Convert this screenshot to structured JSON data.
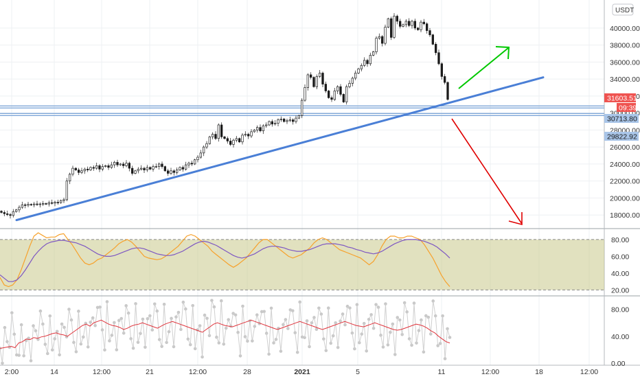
{
  "currency_label": "USDT",
  "chart_data": {
    "type": "candlestick",
    "price_axis": {
      "ticks": [
        "40000.00",
        "38000.00",
        "36000.00",
        "34000.00",
        "32000.00",
        "30000.00",
        "28000.00",
        "26000.00",
        "24000.00",
        "22000.00",
        "20000.00",
        "18000.00"
      ],
      "range": [
        16400,
        43300
      ]
    },
    "time_axis": {
      "ticks": [
        "2:00",
        "14",
        "12:00",
        "21",
        "12:00",
        "28",
        "2021",
        "5",
        "11",
        "12:00",
        "18",
        "12:00"
      ]
    },
    "price_tags": {
      "last_price": "31603.51",
      "countdown": "09:39",
      "level_upper": "30713.80",
      "level_lower": "29822.92"
    },
    "price_colors": {
      "up": "#26a69a",
      "down": "#ef5350",
      "wick": "#333333",
      "trend": "#4a7fd6"
    },
    "candles_close": [
      18300,
      18150,
      18050,
      17950,
      18400,
      18600,
      18900,
      19200,
      19150,
      19250,
      19200,
      19300,
      19250,
      19300,
      19350,
      19300,
      19450,
      19400,
      19500,
      19450,
      19700,
      19800,
      22000,
      22800,
      23500,
      23300,
      23000,
      23200,
      23400,
      23300,
      23600,
      23500,
      23800,
      23400,
      23700,
      23800,
      23600,
      23900,
      24200,
      23900,
      24000,
      23800,
      24100,
      23500,
      22900,
      23200,
      23400,
      23500,
      23300,
      23600,
      23400,
      23700,
      23700,
      24000,
      23700,
      23200,
      22900,
      23200,
      23000,
      23300,
      23600,
      23400,
      23900,
      24100,
      24000,
      24500,
      24800,
      25300,
      26000,
      26400,
      27200,
      27500,
      27000,
      28600,
      27200,
      27000,
      26700,
      26300,
      26800,
      27000,
      26600,
      27400,
      27500,
      27300,
      27800,
      28000,
      28300,
      27900,
      28500,
      28600,
      29000,
      28700,
      28800,
      29200,
      29300,
      29000,
      29100,
      29200,
      29000,
      29400,
      29700,
      31500,
      33000,
      34500,
      34200,
      33100,
      34300,
      34700,
      33400,
      32600,
      31800,
      31600,
      32600,
      33100,
      32200,
      31300,
      33100,
      33500,
      34100,
      34700,
      35200,
      35600,
      36200,
      35800,
      36800,
      37200,
      38800,
      39000,
      38200,
      40100,
      41100,
      38900,
      41400,
      40800,
      40200,
      40400,
      40800,
      40300,
      40800,
      40000,
      39800,
      40700,
      40500,
      39700,
      39200,
      38100,
      37100,
      35800,
      34300,
      33600,
      31600
    ],
    "trendline": {
      "from": [
        17400,
        0
      ],
      "to": [
        34200,
        1
      ]
    },
    "support_levels": [
      30713.8,
      29822.92
    ],
    "projections": [
      {
        "direction": "up",
        "color": "#00c800"
      },
      {
        "direction": "down",
        "color": "#e00000"
      }
    ],
    "oscillator_1": {
      "ticks": [
        "80.00",
        "60.00",
        "40.00",
        "20.00"
      ],
      "range": [
        13,
        93
      ],
      "band": [
        20,
        80
      ],
      "fast_color": "#f7a12b",
      "slow_color": "#7e57c2",
      "fast": [
        35,
        26,
        24,
        26,
        32,
        44,
        58,
        72,
        84,
        88,
        85,
        82,
        83,
        83,
        86,
        87,
        80,
        74,
        66,
        58,
        52,
        50,
        52,
        56,
        58,
        62,
        66,
        70,
        75,
        78,
        80,
        77,
        72,
        66,
        60,
        58,
        57,
        56,
        57,
        60,
        64,
        68,
        72,
        78,
        84,
        86,
        84,
        80,
        76,
        72,
        66,
        62,
        58,
        54,
        50,
        47,
        50,
        54,
        58,
        64,
        70,
        76,
        80,
        80,
        76,
        72,
        68,
        64,
        60,
        58,
        60,
        62,
        66,
        70,
        76,
        80,
        82,
        80,
        76,
        72,
        68,
        66,
        64,
        62,
        60,
        58,
        54,
        50,
        54,
        62,
        72,
        80,
        84,
        84,
        82,
        82,
        84,
        84,
        82,
        80,
        74,
        66,
        58,
        48,
        38,
        30,
        24
      ],
      "slow": [
        38,
        34,
        30,
        30,
        32,
        37,
        44,
        52,
        60,
        66,
        71,
        75,
        77,
        78,
        79,
        79,
        78,
        77,
        76,
        74,
        72,
        69,
        66,
        63,
        61,
        60,
        60,
        61,
        63,
        65,
        67,
        69,
        70,
        70,
        69,
        67,
        65,
        63,
        62,
        61,
        61,
        62,
        64,
        66,
        69,
        72,
        75,
        77,
        78,
        77,
        75,
        73,
        70,
        67,
        64,
        61,
        59,
        58,
        59,
        61,
        63,
        66,
        69,
        71,
        72,
        72,
        71,
        70,
        68,
        67,
        66,
        66,
        67,
        68,
        70,
        72,
        74,
        75,
        75,
        75,
        74,
        73,
        71,
        70,
        68,
        67,
        65,
        64,
        63,
        64,
        66,
        69,
        72,
        75,
        77,
        79,
        80,
        80,
        80,
        79,
        78,
        76,
        74,
        71,
        67,
        63,
        58
      ]
    },
    "oscillator_2": {
      "ticks": [
        "80.00",
        "40.00",
        "0.00"
      ],
      "range": [
        -3,
        100
      ],
      "line_color": "#e0343c",
      "dot_color": "#c8c8c8",
      "line": [
        22,
        23,
        24,
        25,
        23,
        30,
        32,
        36,
        35,
        38,
        37,
        39,
        40,
        42,
        44,
        45,
        43,
        42,
        40,
        44,
        48,
        52,
        56,
        58,
        55,
        60,
        62,
        64,
        61,
        58,
        56,
        55,
        53,
        50,
        52,
        55,
        57,
        58,
        60,
        58,
        56,
        54,
        52,
        55,
        58,
        60,
        62,
        60,
        58,
        56,
        54,
        52,
        50,
        48,
        46,
        50,
        54,
        58,
        60,
        58,
        56,
        55,
        54,
        56,
        58,
        60,
        62,
        64,
        62,
        60,
        58,
        56,
        54,
        52,
        50,
        52,
        54,
        56,
        58,
        60,
        62,
        60,
        58,
        56,
        54,
        52,
        50,
        52,
        54,
        56,
        58,
        60,
        62,
        60,
        58,
        56,
        55,
        54,
        56,
        58,
        60,
        58,
        56,
        54,
        52,
        50,
        49,
        50,
        52,
        54,
        56,
        58,
        57,
        55,
        52,
        48,
        45,
        40,
        36,
        32,
        30
      ]
    },
    "title": "",
    "xlabel": "",
    "ylabel": ""
  }
}
